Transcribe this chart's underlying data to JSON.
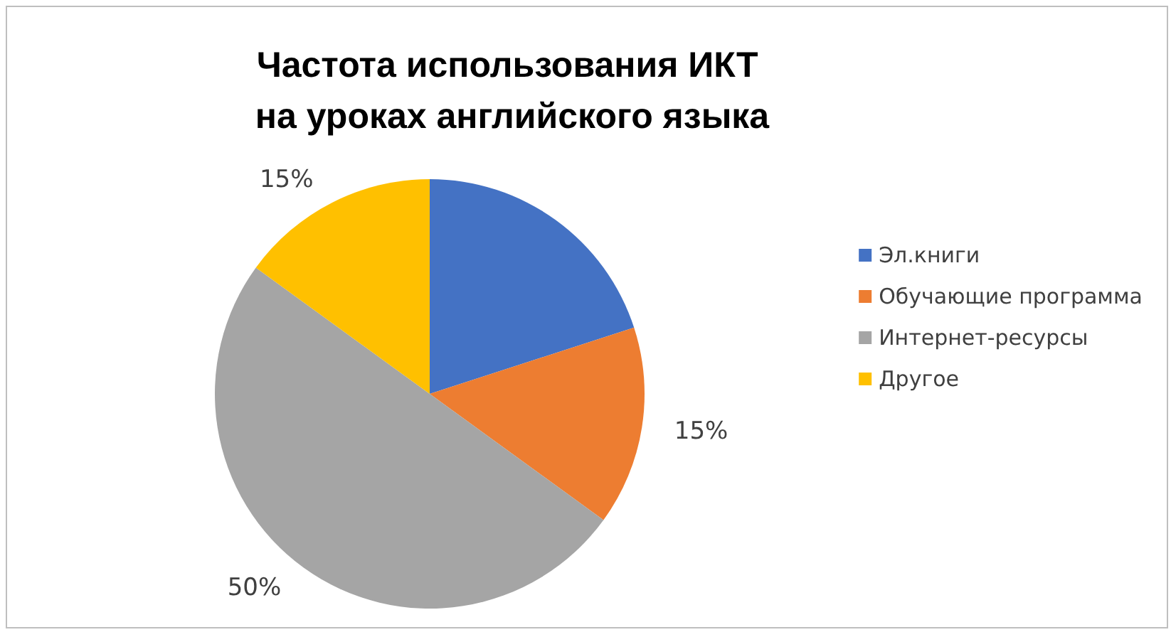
{
  "chart_data": {
    "type": "pie",
    "title": "Частота использования ИКТ на уроках английского языка",
    "categories": [
      "Эл.книги",
      "Обучающие программа",
      "Интернет-ресурсы",
      "Другое"
    ],
    "values": [
      20,
      15,
      50,
      15
    ],
    "colors": [
      "#4472c4",
      "#ed7d31",
      "#a5a5a5",
      "#ffc000"
    ],
    "value_labels": [
      null,
      "15%",
      "50%",
      "15%"
    ],
    "legend": "right"
  }
}
